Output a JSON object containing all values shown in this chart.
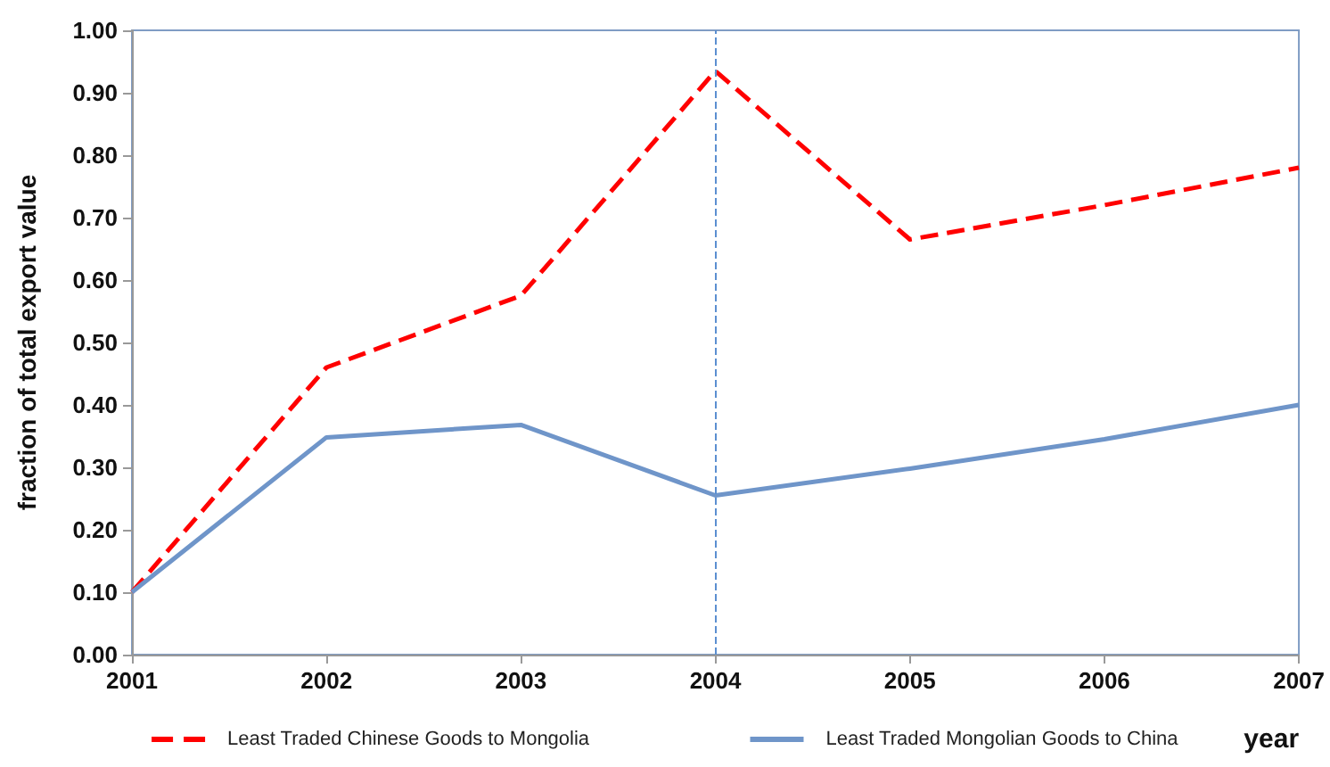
{
  "chart_data": {
    "type": "line",
    "xlabel": "year",
    "ylabel": "fraction of total export value",
    "x": [
      2001,
      2002,
      2003,
      2004,
      2005,
      2006,
      2007
    ],
    "series": [
      {
        "name": "Least Traded Chinese Goods to Mongolia",
        "color": "#ff0000",
        "line_style": "dashed",
        "values": [
          0.1,
          0.46,
          0.575,
          0.935,
          0.665,
          0.72,
          0.78
        ]
      },
      {
        "name": "Least Traded Mongolian Goods to China",
        "color": "#6f95c9",
        "line_style": "solid",
        "values": [
          0.1,
          0.348,
          0.368,
          0.255,
          0.298,
          0.345,
          0.4
        ]
      }
    ],
    "xlim": [
      2001,
      2007
    ],
    "xticks": [
      2001,
      2002,
      2003,
      2004,
      2005,
      2006,
      2007
    ],
    "ylim": [
      0,
      1
    ],
    "yticks": [
      {
        "value": 0,
        "label": "0.00"
      },
      {
        "value": 0.1,
        "label": "0.10"
      },
      {
        "value": 0.2,
        "label": "0.20"
      },
      {
        "value": 0.3,
        "label": "0.30"
      },
      {
        "value": 0.4,
        "label": "0.40"
      },
      {
        "value": 0.5,
        "label": "0.50"
      },
      {
        "value": 0.6,
        "label": "0.60"
      },
      {
        "value": 0.7,
        "label": "0.70"
      },
      {
        "value": 0.8,
        "label": "0.80"
      },
      {
        "value": 0.9,
        "label": "0.90"
      },
      {
        "value": 1,
        "label": "1.00"
      }
    ],
    "ref_lines": [
      {
        "axis": "x",
        "value": 2004,
        "color": "#5b8fd0",
        "line_style": "dashed"
      }
    ],
    "grid": false,
    "legend": "bottom",
    "marker": "none"
  }
}
